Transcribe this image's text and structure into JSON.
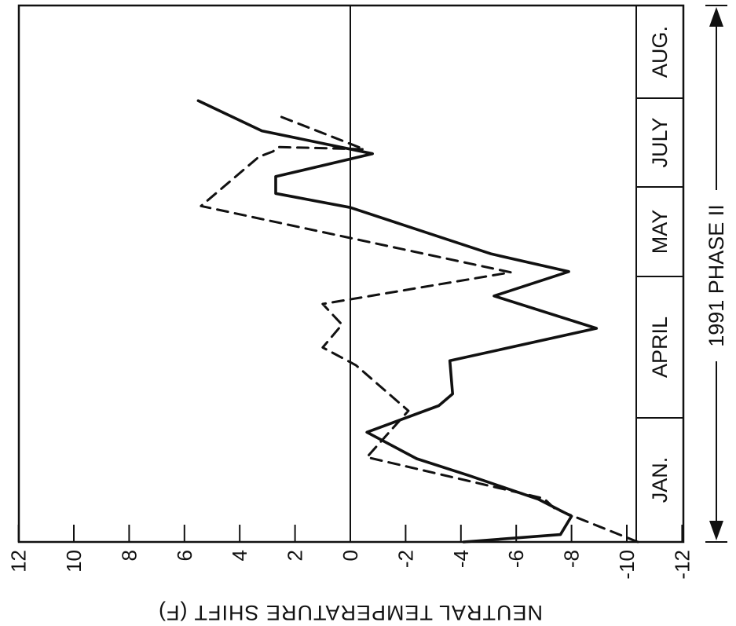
{
  "chart_data": {
    "type": "line",
    "orientation": "rotated",
    "ylabel": "NEUTRAL TEMPERATURE SHIFT (F)",
    "ylim": [
      -12,
      12
    ],
    "yticks": [
      "12",
      "10",
      "8",
      "6",
      "4",
      "2",
      "0",
      "-2",
      "-4",
      "-6",
      "-8",
      "-10",
      "-12"
    ],
    "month_bands": [
      "JAN.",
      "APRIL",
      "MAY",
      "JULY",
      "AUG."
    ],
    "period_label": "1991 PHASE II",
    "grid": false,
    "series": [
      {
        "style": "solid",
        "color": "#111111",
        "points": [
          {
            "t": 0.0,
            "v": -4.1
          },
          {
            "t": 0.0151,
            "v": -7.6
          },
          {
            "t": 0.0529,
            "v": -8.0
          },
          {
            "t": 0.0877,
            "v": -6.8
          },
          {
            "t": 0.1361,
            "v": -4.3
          },
          {
            "t": 0.1709,
            "v": -2.4
          },
          {
            "t": 0.2254,
            "v": -0.6
          },
          {
            "t": 0.2799,
            "v": -3.2
          },
          {
            "t": 0.3041,
            "v": -3.7
          },
          {
            "t": 0.3721,
            "v": -3.6
          },
          {
            "t": 0.4387,
            "v": -8.9
          },
          {
            "t": 0.5052,
            "v": -5.2
          },
          {
            "t": 0.5552,
            "v": -7.9
          },
          {
            "t": 0.5915,
            "v": -5.1
          },
          {
            "t": 0.6868,
            "v": 0.0
          },
          {
            "t": 0.7156,
            "v": 2.7
          },
          {
            "t": 0.7504,
            "v": 2.7
          },
          {
            "t": 0.7973,
            "v": -0.8
          },
          {
            "t": 0.8442,
            "v": 3.2
          },
          {
            "t": 0.9062,
            "v": 5.5
          }
        ]
      },
      {
        "style": "dashed",
        "color": "#111111",
        "points": [
          {
            "t": 0.0,
            "v": -10.4
          },
          {
            "t": 0.068,
            "v": -7.4
          },
          {
            "t": 0.0892,
            "v": -7.0
          },
          {
            "t": 0.174,
            "v": -0.6
          },
          {
            "t": 0.2693,
            "v": -2.1
          },
          {
            "t": 0.3631,
            "v": -0.2
          },
          {
            "t": 0.3994,
            "v": 1.0
          },
          {
            "t": 0.4463,
            "v": 0.3
          },
          {
            "t": 0.4887,
            "v": 1.0
          },
          {
            "t": 0.5537,
            "v": -5.8
          },
          {
            "t": 0.6898,
            "v": 5.4
          },
          {
            "t": 0.7912,
            "v": 3.3
          },
          {
            "t": 0.8018,
            "v": 2.8
          },
          {
            "t": 0.8109,
            "v": 2.6
          },
          {
            "t": 0.8064,
            "v": -0.5
          },
          {
            "t": 0.8729,
            "v": 2.5
          },
          {
            "t": 0.8835,
            "v": 2.5
          }
        ]
      }
    ]
  }
}
